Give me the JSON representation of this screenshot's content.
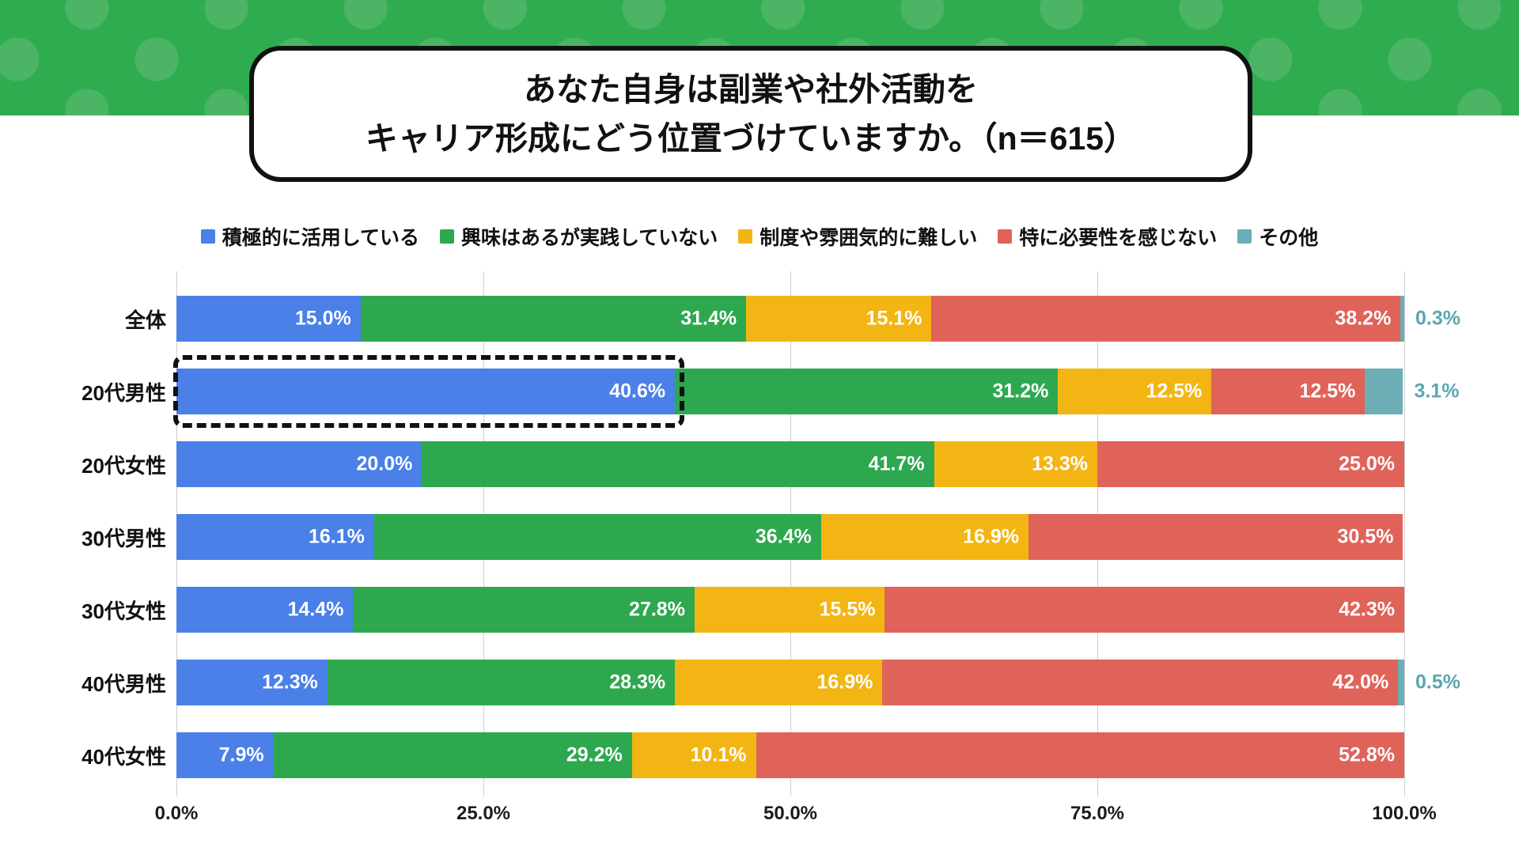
{
  "header": {
    "band_color": "#2FAC50",
    "dot_color": "#4BB565",
    "title_line1": "あなた自身は副業や社外活動を",
    "title_line2": "キャリア形成にどう位置づけていますか。（n＝615）"
  },
  "chart_data": {
    "type": "bar",
    "stacked": true,
    "orientation": "horizontal",
    "unit": "%",
    "xlim": [
      0,
      100
    ],
    "xticks": [
      "0.0%",
      "25.0%",
      "50.0%",
      "75.0%",
      "100.0%"
    ],
    "xtick_values": [
      0,
      25,
      50,
      75,
      100
    ],
    "grid": true,
    "legend_position": "top",
    "categories": [
      "全体",
      "20代男性",
      "20代女性",
      "30代男性",
      "30代女性",
      "40代男性",
      "40代女性"
    ],
    "series": [
      {
        "name": "積極的に活用している",
        "color": "#4A80E8",
        "labels_outside": false,
        "values": [
          15.0,
          40.6,
          20.0,
          16.1,
          14.4,
          12.3,
          7.9
        ]
      },
      {
        "name": "興味はあるが実践していない",
        "color": "#2EA84F",
        "labels_outside": false,
        "values": [
          31.4,
          31.2,
          41.7,
          36.4,
          27.8,
          28.3,
          29.2
        ]
      },
      {
        "name": "制度や雰囲気的に難しい",
        "color": "#F3B513",
        "labels_outside": false,
        "values": [
          15.1,
          12.5,
          13.3,
          16.9,
          15.5,
          16.9,
          10.1
        ]
      },
      {
        "name": "特に必要性を感じない",
        "color": "#E0635A",
        "labels_outside": false,
        "values": [
          38.2,
          12.5,
          25.0,
          30.5,
          42.3,
          42.0,
          52.8
        ]
      },
      {
        "name": "その他",
        "color": "#6CAEB5",
        "label_color": "#5CA6B0",
        "labels_outside": true,
        "values": [
          0.3,
          3.1,
          0,
          0,
          0,
          0.5,
          0
        ]
      }
    ],
    "highlight": {
      "category": "20代男性",
      "series": "積極的に活用している",
      "row_index": 1,
      "series_index": 0
    }
  }
}
